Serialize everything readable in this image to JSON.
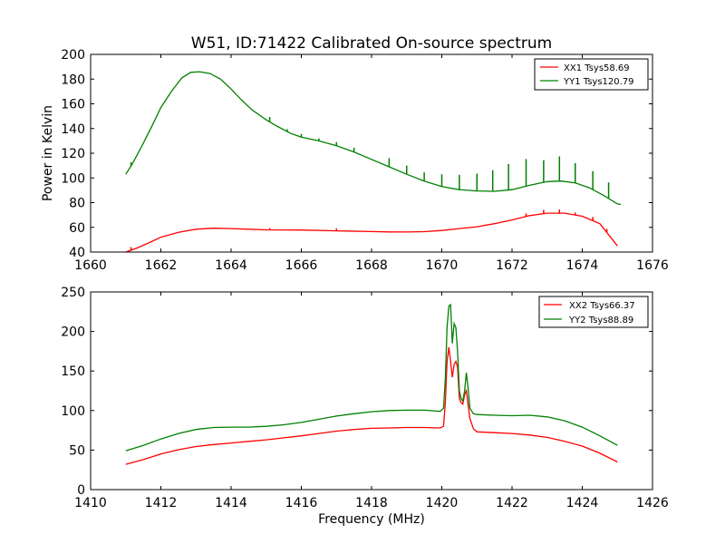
{
  "chart_data": [
    {
      "type": "line",
      "title": "W51, ID:71422 Calibrated On-source spectrum",
      "xlabel": "",
      "ylabel": "Power in Kelvin",
      "xlim": [
        1660,
        1676
      ],
      "ylim": [
        40,
        200
      ],
      "xticks": [
        1660,
        1662,
        1664,
        1666,
        1668,
        1670,
        1672,
        1674,
        1676
      ],
      "yticks": [
        40,
        60,
        80,
        100,
        120,
        140,
        160,
        180,
        200
      ],
      "legend": "top-right",
      "series": [
        {
          "name": "XX1 Tsys58.69",
          "color": "#ff0000",
          "points": [
            [
              1661.0,
              40
            ],
            [
              1661.3,
              43
            ],
            [
              1661.7,
              48
            ],
            [
              1662.0,
              52
            ],
            [
              1662.5,
              56
            ],
            [
              1663.0,
              58.5
            ],
            [
              1663.5,
              59.3
            ],
            [
              1664.0,
              59
            ],
            [
              1664.5,
              58.5
            ],
            [
              1665.0,
              58
            ],
            [
              1666.0,
              57.8
            ],
            [
              1667.0,
              57.2
            ],
            [
              1668.0,
              56.6
            ],
            [
              1668.5,
              56.3
            ],
            [
              1669.0,
              56.2
            ],
            [
              1669.5,
              56.5
            ],
            [
              1670.0,
              57.5
            ],
            [
              1670.5,
              59
            ],
            [
              1671.0,
              60.5
            ],
            [
              1671.5,
              63
            ],
            [
              1672.0,
              66
            ],
            [
              1672.5,
              69.5
            ],
            [
              1673.0,
              71.5
            ],
            [
              1673.5,
              71.5
            ],
            [
              1674.0,
              69
            ],
            [
              1674.5,
              63
            ],
            [
              1675.0,
              45
            ]
          ],
          "spikes": [
            [
              1661.15,
              2.5
            ],
            [
              1665.1,
              1.5
            ],
            [
              1667.0,
              2
            ],
            [
              1672.4,
              2.5
            ],
            [
              1672.9,
              3
            ],
            [
              1673.35,
              3
            ],
            [
              1673.8,
              2
            ],
            [
              1674.3,
              3
            ],
            [
              1674.7,
              3
            ]
          ]
        },
        {
          "name": "YY1 Tsys120.79",
          "color": "#008000",
          "points": [
            [
              1661.0,
              103
            ],
            [
              1661.2,
              112
            ],
            [
              1661.5,
              128
            ],
            [
              1661.8,
              145
            ],
            [
              1662.0,
              157
            ],
            [
              1662.3,
              170
            ],
            [
              1662.6,
              181
            ],
            [
              1662.85,
              185.5
            ],
            [
              1663.1,
              186
            ],
            [
              1663.4,
              184.5
            ],
            [
              1663.7,
              180
            ],
            [
              1664.0,
              172
            ],
            [
              1664.3,
              163
            ],
            [
              1664.6,
              155
            ],
            [
              1665.0,
              147
            ],
            [
              1665.3,
              142
            ],
            [
              1665.7,
              136
            ],
            [
              1666.0,
              133
            ],
            [
              1666.5,
              130
            ],
            [
              1667.0,
              126
            ],
            [
              1667.5,
              121
            ],
            [
              1668.0,
              115
            ],
            [
              1668.5,
              109
            ],
            [
              1669.0,
              103
            ],
            [
              1669.5,
              97.5
            ],
            [
              1670.0,
              93
            ],
            [
              1670.5,
              90.5
            ],
            [
              1671.0,
              89.5
            ],
            [
              1671.5,
              89.2
            ],
            [
              1672.0,
              90.5
            ],
            [
              1672.5,
              94
            ],
            [
              1673.0,
              97
            ],
            [
              1673.4,
              97.5
            ],
            [
              1673.8,
              96
            ],
            [
              1674.2,
              92
            ],
            [
              1674.6,
              86
            ],
            [
              1675.0,
              79
            ],
            [
              1675.1,
              78.5
            ]
          ],
          "spikes": [
            [
              1661.15,
              3
            ],
            [
              1665.1,
              4
            ],
            [
              1665.6,
              2
            ],
            [
              1666.0,
              2.5
            ],
            [
              1666.5,
              2
            ],
            [
              1667.0,
              3
            ],
            [
              1667.5,
              3.5
            ],
            [
              1668.5,
              7
            ],
            [
              1669.0,
              7
            ],
            [
              1669.5,
              7
            ],
            [
              1670.0,
              10
            ],
            [
              1670.5,
              12
            ],
            [
              1671.0,
              14
            ],
            [
              1671.45,
              17
            ],
            [
              1671.9,
              21
            ],
            [
              1672.4,
              22
            ],
            [
              1672.9,
              18
            ],
            [
              1673.35,
              20
            ],
            [
              1673.8,
              16
            ],
            [
              1674.3,
              15
            ],
            [
              1674.75,
              13
            ]
          ]
        }
      ]
    },
    {
      "type": "line",
      "title": "",
      "xlabel": "Frequency (MHz)",
      "ylabel": "",
      "xlim": [
        1410,
        1426
      ],
      "ylim": [
        0,
        250
      ],
      "xticks": [
        1410,
        1412,
        1414,
        1416,
        1418,
        1420,
        1422,
        1424,
        1426
      ],
      "yticks": [
        0,
        50,
        100,
        150,
        200,
        250
      ],
      "legend": "top-right",
      "series": [
        {
          "name": "XX2 Tsys66.37",
          "color": "#ff0000",
          "points": [
            [
              1411.0,
              32
            ],
            [
              1411.5,
              38
            ],
            [
              1412.0,
              45
            ],
            [
              1412.5,
              50.5
            ],
            [
              1413.0,
              54.5
            ],
            [
              1413.5,
              57
            ],
            [
              1414.0,
              59
            ],
            [
              1414.5,
              61
            ],
            [
              1415.0,
              63
            ],
            [
              1415.5,
              65.5
            ],
            [
              1416.0,
              68
            ],
            [
              1416.5,
              71
            ],
            [
              1417.0,
              74
            ],
            [
              1417.5,
              76
            ],
            [
              1418.0,
              77.5
            ],
            [
              1418.5,
              78
            ],
            [
              1419.0,
              78.5
            ],
            [
              1419.5,
              78.5
            ],
            [
              1419.95,
              78
            ],
            [
              1420.05,
              80
            ],
            [
              1420.1,
              110
            ],
            [
              1420.15,
              162
            ],
            [
              1420.2,
              180
            ],
            [
              1420.25,
              162
            ],
            [
              1420.3,
              142
            ],
            [
              1420.35,
              158
            ],
            [
              1420.4,
              162
            ],
            [
              1420.45,
              155
            ],
            [
              1420.5,
              115
            ],
            [
              1420.55,
              110
            ],
            [
              1420.6,
              108
            ],
            [
              1420.65,
              120
            ],
            [
              1420.7,
              125
            ],
            [
              1420.75,
              107
            ],
            [
              1420.8,
              90
            ],
            [
              1420.9,
              77
            ],
            [
              1421.0,
              73
            ],
            [
              1421.5,
              72
            ],
            [
              1422.0,
              71
            ],
            [
              1422.5,
              69
            ],
            [
              1423.0,
              66
            ],
            [
              1423.5,
              61
            ],
            [
              1424.0,
              55
            ],
            [
              1424.5,
              46
            ],
            [
              1425.0,
              35
            ]
          ]
        },
        {
          "name": "YY2 Tsys88.89",
          "color": "#008000",
          "points": [
            [
              1411.0,
              49
            ],
            [
              1411.5,
              56
            ],
            [
              1412.0,
              64
            ],
            [
              1412.5,
              71
            ],
            [
              1413.0,
              76
            ],
            [
              1413.5,
              78.5
            ],
            [
              1414.0,
              79
            ],
            [
              1414.5,
              79
            ],
            [
              1415.0,
              80
            ],
            [
              1415.5,
              82
            ],
            [
              1416.0,
              85
            ],
            [
              1416.5,
              89
            ],
            [
              1417.0,
              93
            ],
            [
              1417.5,
              96
            ],
            [
              1418.0,
              98.5
            ],
            [
              1418.5,
              100
            ],
            [
              1419.0,
              100.5
            ],
            [
              1419.5,
              100.5
            ],
            [
              1419.95,
              99
            ],
            [
              1420.05,
              103
            ],
            [
              1420.1,
              140
            ],
            [
              1420.15,
              205
            ],
            [
              1420.2,
              232
            ],
            [
              1420.25,
              234
            ],
            [
              1420.3,
              185
            ],
            [
              1420.35,
              210
            ],
            [
              1420.4,
              205
            ],
            [
              1420.45,
              175
            ],
            [
              1420.5,
              125
            ],
            [
              1420.55,
              115
            ],
            [
              1420.6,
              112
            ],
            [
              1420.65,
              125
            ],
            [
              1420.7,
              148
            ],
            [
              1420.75,
              128
            ],
            [
              1420.8,
              103
            ],
            [
              1420.9,
              96
            ],
            [
              1421.0,
              95
            ],
            [
              1421.5,
              94
            ],
            [
              1422.0,
              93.5
            ],
            [
              1422.5,
              94
            ],
            [
              1423.0,
              92
            ],
            [
              1423.5,
              87
            ],
            [
              1424.0,
              79
            ],
            [
              1424.5,
              68
            ],
            [
              1425.0,
              56
            ]
          ]
        }
      ]
    }
  ]
}
